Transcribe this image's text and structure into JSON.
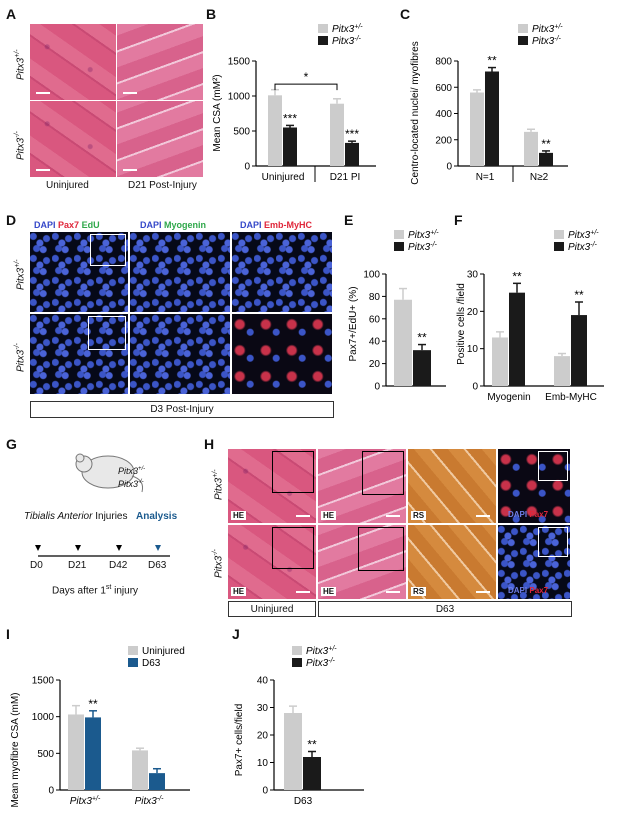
{
  "panels": {
    "A": "A",
    "B": "B",
    "C": "C",
    "D": "D",
    "E": "E",
    "F": "F",
    "G": "G",
    "H": "H",
    "I": "I",
    "J": "J"
  },
  "geno": {
    "het": "Pitx3+/-",
    "ko": "Pitx3-/-",
    "het_base": "Pitx3",
    "het_sup": "+/-",
    "ko_base": "Pitx3",
    "ko_sup": "-/-"
  },
  "panelA": {
    "uninjured": "Uninjured",
    "d21": "D21 Post-Injury"
  },
  "panelD": {
    "stain1": [
      "DAPI",
      "Pax7",
      "EdU"
    ],
    "stain2": [
      "DAPI",
      "Myogenin"
    ],
    "stain3": [
      "DAPI",
      "Emb-MyHC"
    ],
    "footer": "D3 Post-Injury"
  },
  "panelG": {
    "injuries_a": "Tibialis Anterior",
    "injuries_b": "Injuries",
    "analysis": "Analysis",
    "ticks": [
      "D0",
      "D21",
      "D42",
      "D63"
    ],
    "xlabel": "Days after 1",
    "xlabel_sup": "st",
    "xlabel_end": " injury"
  },
  "panelH": {
    "labels": [
      "HE",
      "HE",
      "RS"
    ],
    "dapi": "DAPI",
    "pax7": "Pax7",
    "uninjured": "Uninjured",
    "d63": "D63"
  },
  "colors": {
    "grey": "#cccccc",
    "black": "#1a1a1a",
    "blue": "#1b5a8e",
    "dapi": "#3548c9",
    "pax7": "#e0263a",
    "edu": "#2fa84a",
    "myogenin": "#2fa84a",
    "analysis": "#1b5a8e"
  },
  "chart_data": [
    {
      "id": "B",
      "type": "bar",
      "ylabel": "Mean CSA (mM²)",
      "ylim": [
        0,
        1500
      ],
      "yticks": [
        0,
        500,
        1000,
        1500
      ],
      "categories": [
        "Uninjured",
        "D21 PI"
      ],
      "series": [
        {
          "name": "Pitx3+/-",
          "values": [
            1010,
            890
          ],
          "errors": [
            80,
            70
          ]
        },
        {
          "name": "Pitx3-/-",
          "values": [
            550,
            330
          ],
          "errors": [
            30,
            25
          ]
        }
      ],
      "annotations": [
        "***",
        "***",
        "*"
      ]
    },
    {
      "id": "C",
      "type": "bar",
      "ylabel": "Centro-located nuclei/ myofibres",
      "ylim": [
        0,
        800
      ],
      "yticks": [
        0,
        200,
        400,
        600,
        800
      ],
      "categories": [
        "N=1",
        "N≥2"
      ],
      "series": [
        {
          "name": "Pitx3+/-",
          "values": [
            560,
            260
          ],
          "errors": [
            20,
            20
          ]
        },
        {
          "name": "Pitx3-/-",
          "values": [
            720,
            100
          ],
          "errors": [
            30,
            15
          ]
        }
      ],
      "annotations": [
        "**",
        "**"
      ]
    },
    {
      "id": "E",
      "type": "bar",
      "ylabel": "Pax7+/EdU+ (%)",
      "ylim": [
        0,
        100
      ],
      "yticks": [
        0,
        20,
        40,
        60,
        80,
        100
      ],
      "categories": [
        ""
      ],
      "series": [
        {
          "name": "Pitx3+/-",
          "values": [
            77
          ],
          "errors": [
            10
          ]
        },
        {
          "name": "Pitx3-/-",
          "values": [
            32
          ],
          "errors": [
            5
          ]
        }
      ],
      "annotations": [
        "**"
      ]
    },
    {
      "id": "F",
      "type": "bar",
      "ylabel": "Positive cells /field",
      "ylim": [
        0,
        30
      ],
      "yticks": [
        0,
        10,
        20,
        30
      ],
      "categories": [
        "Myogenin",
        "Emb-MyHC"
      ],
      "series": [
        {
          "name": "Pitx3+/-",
          "values": [
            13,
            8
          ],
          "errors": [
            1.5,
            0.7
          ]
        },
        {
          "name": "Pitx3-/-",
          "values": [
            25,
            19
          ],
          "errors": [
            2.5,
            3.5
          ]
        }
      ],
      "annotations": [
        "**",
        "**"
      ]
    },
    {
      "id": "I",
      "type": "bar",
      "ylabel": "Mean myofibre CSA (mM)",
      "ylim": [
        0,
        1500
      ],
      "yticks": [
        0,
        500,
        1000,
        1500
      ],
      "categories": [
        "Pitx3+/-",
        "Pitx3-/-"
      ],
      "series": [
        {
          "name": "Uninjured",
          "values": [
            1030,
            540
          ],
          "errors": [
            120,
            30
          ]
        },
        {
          "name": "D63",
          "values": [
            990,
            230
          ],
          "errors": [
            90,
            60
          ]
        }
      ],
      "annotations": [
        "**"
      ]
    },
    {
      "id": "J",
      "type": "bar",
      "ylabel": "Pax7+ cells/field",
      "ylim": [
        0,
        40
      ],
      "yticks": [
        0,
        10,
        20,
        30,
        40
      ],
      "categories": [
        "D63"
      ],
      "series": [
        {
          "name": "Pitx3+/-",
          "values": [
            28
          ],
          "errors": [
            2.5
          ]
        },
        {
          "name": "Pitx3-/-",
          "values": [
            12
          ],
          "errors": [
            2
          ]
        }
      ],
      "annotations": [
        "**"
      ]
    }
  ]
}
